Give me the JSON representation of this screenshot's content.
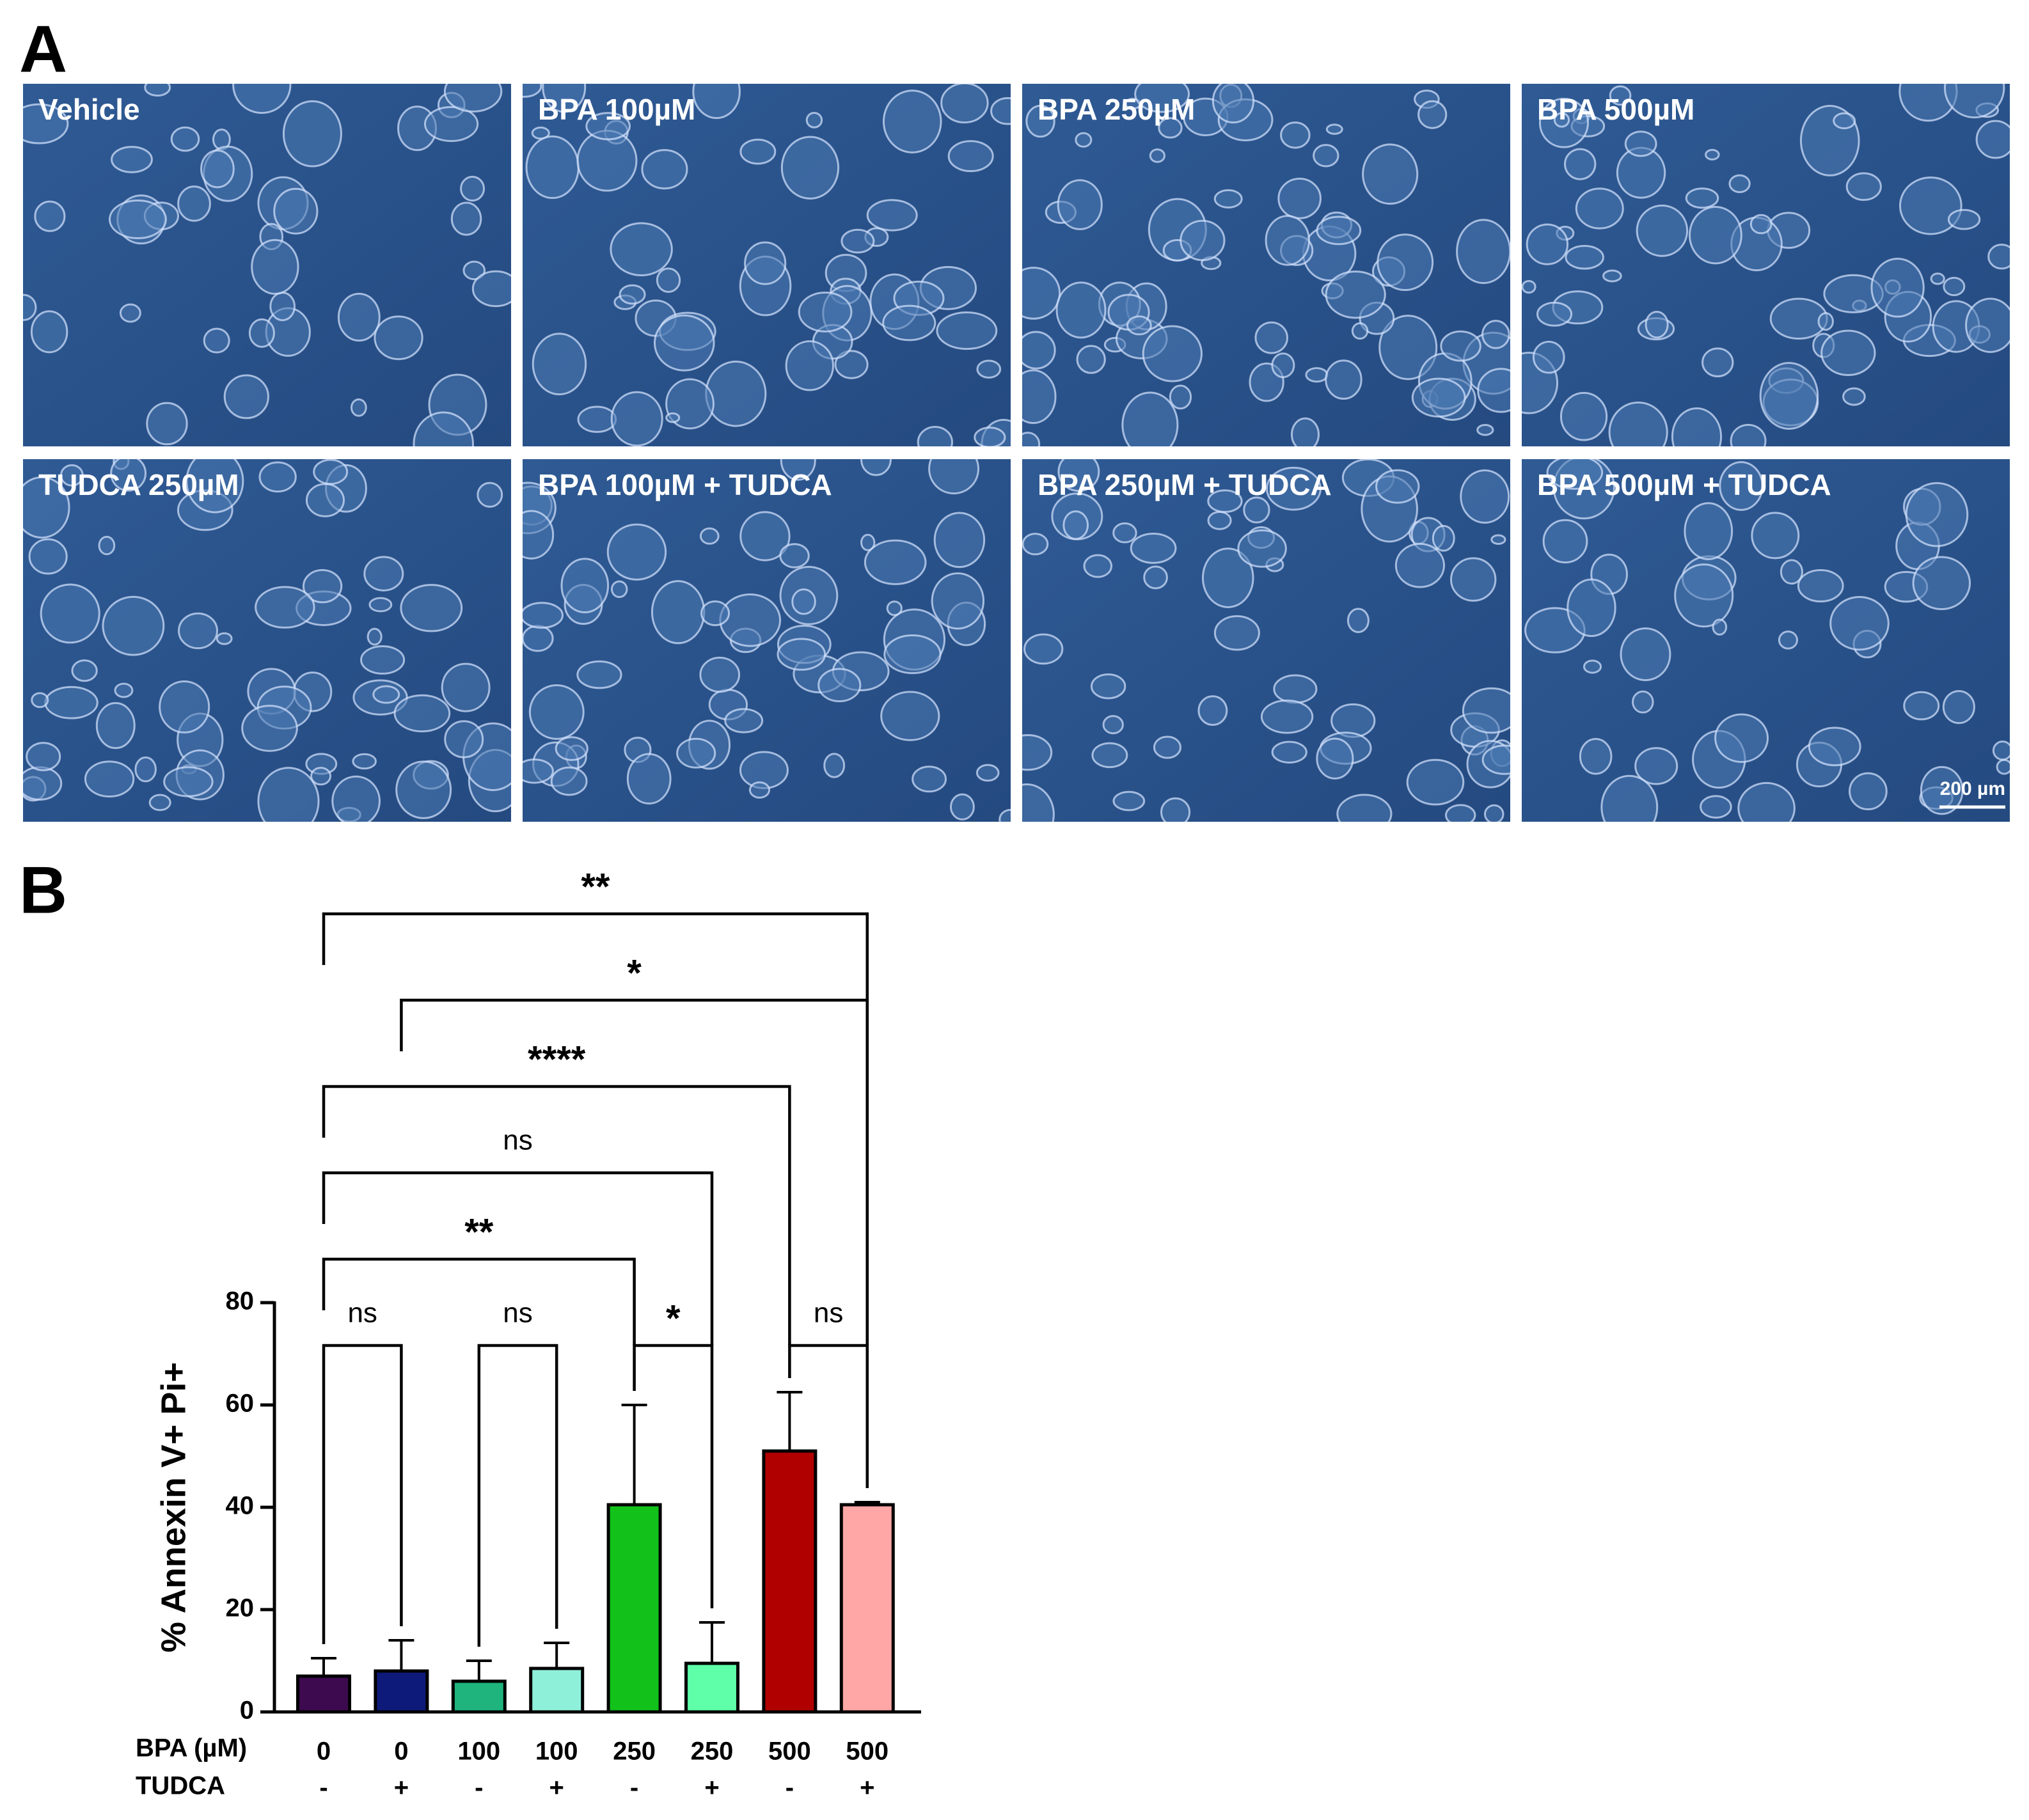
{
  "panel_a": {
    "label": "A",
    "images": [
      {
        "title": "Vehicle"
      },
      {
        "title": "BPA 100µM"
      },
      {
        "title": "BPA 250µM"
      },
      {
        "title": "BPA 500µM"
      },
      {
        "title": "TUDCA 250µM"
      },
      {
        "title": "BPA 100µM + TUDCA"
      },
      {
        "title": "BPA 250µM + TUDCA"
      },
      {
        "title": "BPA 500µM + TUDCA"
      }
    ],
    "scale_bar": "200 µm"
  },
  "panel_b": {
    "label": "B"
  },
  "chart_data": {
    "type": "bar",
    "y_label": "% Annexin V+ Pi+",
    "row_labels": [
      "BPA (µM)",
      "TUDCA"
    ],
    "categories": [
      "0",
      "0",
      "100",
      "100",
      "250",
      "250",
      "500",
      "500"
    ],
    "tudca": [
      "-",
      "+",
      "-",
      "+",
      "-",
      "+",
      "-",
      "+"
    ],
    "values": [
      7,
      8,
      6,
      8.5,
      40.5,
      9.5,
      51,
      40.5
    ],
    "errors": [
      3.5,
      6,
      4,
      5,
      19.5,
      8,
      11.5,
      0.5
    ],
    "colors": [
      "#3d0a4f",
      "#0d1a7a",
      "#1fb37d",
      "#8ff0da",
      "#12c21a",
      "#5effa8",
      "#b00000",
      "#ffa6a6"
    ],
    "ylim": [
      0,
      80
    ],
    "yticks": [
      0,
      20,
      40,
      60,
      80
    ],
    "comparisons": [
      {
        "from": 0,
        "to": 1,
        "label": "ns"
      },
      {
        "from": 2,
        "to": 3,
        "label": "ns"
      },
      {
        "from": 4,
        "to": 5,
        "label": "*"
      },
      {
        "from": 6,
        "to": 7,
        "label": "ns"
      },
      {
        "from": 0,
        "to": 4,
        "label": "**"
      },
      {
        "from": 0,
        "to": 5,
        "label": "ns"
      },
      {
        "from": 0,
        "to": 6,
        "label": "****"
      },
      {
        "from": 1,
        "to": 7,
        "label": "*"
      },
      {
        "from": 0,
        "to": 7,
        "label": "**"
      }
    ]
  }
}
